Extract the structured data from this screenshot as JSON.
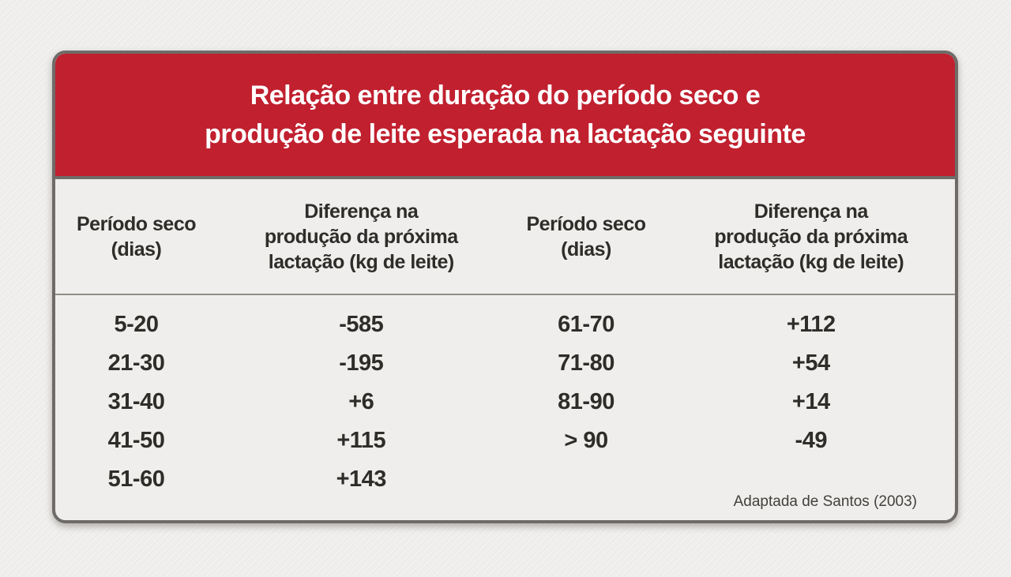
{
  "card": {
    "header": {
      "title": "Relação entre duração do período seco e\nprodução de leite esperada na lactação seguinte",
      "background_color": "#c1202f",
      "text_color": "#ffffff"
    },
    "columns": {
      "period_label": "Período seco\n(dias)",
      "diff_label": "Diferença na\nprodução da próxima\nlactação (kg de leite)"
    },
    "left_rows": [
      {
        "period": "5-20",
        "diff": "-585"
      },
      {
        "period": "21-30",
        "diff": "-195"
      },
      {
        "period": "31-40",
        "diff": "+6"
      },
      {
        "period": "41-50",
        "diff": "+115"
      },
      {
        "period": "51-60",
        "diff": "+143"
      }
    ],
    "right_rows": [
      {
        "period": "61-70",
        "diff": "+112"
      },
      {
        "period": "71-80",
        "diff": "+54"
      },
      {
        "period": "81-90",
        "diff": "+14"
      },
      {
        "period": "> 90",
        "diff": "-49"
      }
    ],
    "source": "Adaptada de Santos (2003)",
    "border_color": "#6e6b68",
    "body_background": "#efeeec",
    "page_background": "#f2f1ef",
    "text_color": "#2f2d2a"
  },
  "chart_data": {
    "type": "table",
    "title": "Relação entre duração do período seco e produção de leite esperada na lactação seguinte",
    "columns": [
      "Período seco (dias)",
      "Diferença na produção da próxima lactação (kg de leite)"
    ],
    "rows": [
      [
        "5-20",
        -585
      ],
      [
        "21-30",
        -195
      ],
      [
        "31-40",
        6
      ],
      [
        "41-50",
        115
      ],
      [
        "51-60",
        143
      ],
      [
        "61-70",
        112
      ],
      [
        "71-80",
        54
      ],
      [
        "81-90",
        14
      ],
      [
        "> 90",
        -49
      ]
    ],
    "source": "Adaptada de Santos (2003)",
    "layout": "two side-by-side column pairs inside one card; title bar red, table background light gray"
  }
}
